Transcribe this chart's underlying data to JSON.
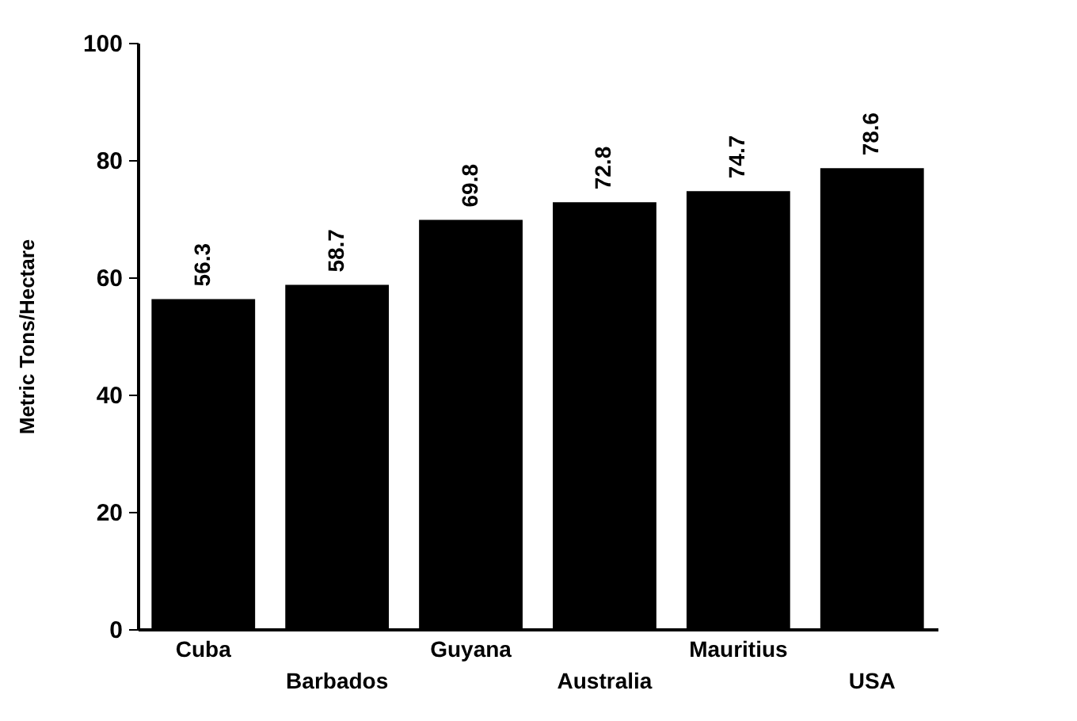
{
  "chart_data": {
    "type": "bar",
    "ylabel": "Metric Tons/Hectare",
    "categories": [
      "Cuba",
      "Barbados",
      "Guyana",
      "Australia",
      "Mauritius",
      "USA"
    ],
    "values": [
      56.3,
      58.7,
      69.8,
      72.8,
      74.7,
      78.6
    ],
    "color": "#000000",
    "ylim": [
      0,
      100
    ],
    "yticks": [
      0,
      20,
      40,
      60,
      80,
      100
    ],
    "grid": false,
    "data_labels": true
  }
}
